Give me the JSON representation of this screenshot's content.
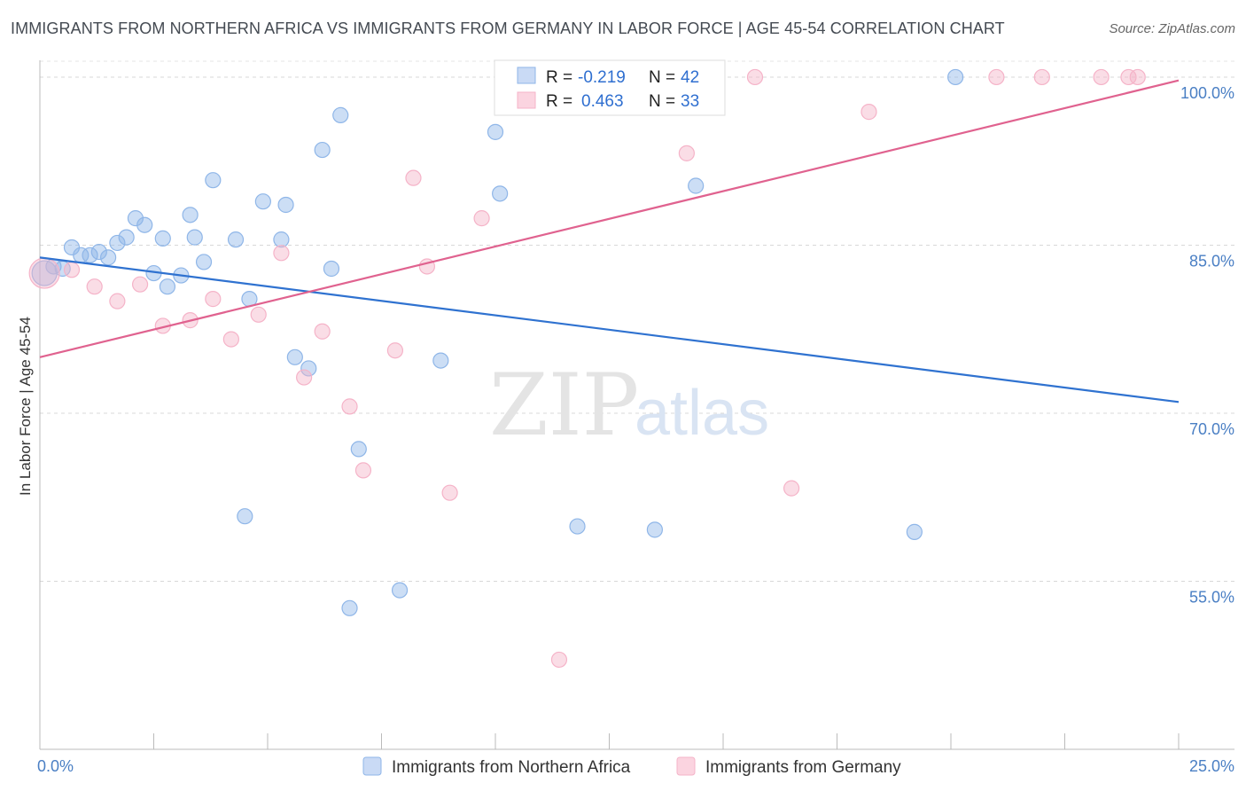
{
  "header": {
    "title": "IMMIGRANTS FROM NORTHERN AFRICA VS IMMIGRANTS FROM GERMANY IN LABOR FORCE | AGE 45-54 CORRELATION CHART",
    "source": "Source: ZipAtlas.com"
  },
  "watermark": {
    "zip": "ZIP",
    "atlas": "atlas"
  },
  "chart_data": {
    "type": "scatter",
    "title": "IMMIGRANTS FROM NORTHERN AFRICA VS IMMIGRANTS FROM GERMANY IN LABOR FORCE | AGE 45-54 CORRELATION CHART",
    "ylabel": "In Labor Force | Age 45-54",
    "xlabel": "",
    "xlim": [
      0,
      25
    ],
    "ylim": [
      40,
      101.5
    ],
    "x_tick_labels": [
      {
        "value": 0,
        "label": "0.0%"
      },
      {
        "value": 25,
        "label": "25.0%"
      }
    ],
    "x_minor_ticks": [
      2.5,
      5,
      7.5,
      10,
      12.5,
      15,
      17.5,
      20,
      22.5
    ],
    "y_ticks": [
      {
        "value": 55,
        "label": "55.0%"
      },
      {
        "value": 70,
        "label": "70.0%"
      },
      {
        "value": 85,
        "label": "85.0%"
      },
      {
        "value": 100,
        "label": "100.0%"
      }
    ],
    "grid": true,
    "legend_position": "bottom-center",
    "stats_box": {
      "rows": [
        {
          "r_label": "R = ",
          "r_value": "-0.219",
          "n_label": "N = ",
          "n_value": "42"
        },
        {
          "r_label": "R = ",
          "r_value": "0.463",
          "n_label": "N = ",
          "n_value": "33"
        }
      ]
    },
    "series": [
      {
        "name": "Immigrants from Northern Africa",
        "color": "#8fb6e8",
        "line_color": "#2f72d0",
        "trend": {
          "x0": 0,
          "y0": 83.9,
          "x1": 25,
          "y1": 71.0
        },
        "points": [
          [
            0.1,
            82.5
          ],
          [
            0.3,
            83.1
          ],
          [
            0.5,
            82.9
          ],
          [
            0.7,
            84.8
          ],
          [
            0.9,
            84.1
          ],
          [
            1.1,
            84.1
          ],
          [
            1.3,
            84.4
          ],
          [
            1.5,
            83.9
          ],
          [
            1.7,
            85.2
          ],
          [
            1.9,
            85.7
          ],
          [
            2.1,
            87.4
          ],
          [
            2.3,
            86.8
          ],
          [
            2.5,
            82.5
          ],
          [
            2.7,
            85.6
          ],
          [
            2.8,
            81.3
          ],
          [
            3.1,
            82.3
          ],
          [
            3.3,
            87.7
          ],
          [
            3.4,
            85.7
          ],
          [
            3.6,
            83.5
          ],
          [
            3.8,
            90.8
          ],
          [
            4.3,
            85.5
          ],
          [
            4.5,
            60.8
          ],
          [
            4.6,
            80.2
          ],
          [
            4.9,
            88.9
          ],
          [
            5.3,
            85.5
          ],
          [
            5.4,
            88.6
          ],
          [
            5.6,
            75.0
          ],
          [
            5.9,
            74.0
          ],
          [
            6.2,
            93.5
          ],
          [
            6.4,
            82.9
          ],
          [
            6.6,
            96.6
          ],
          [
            6.8,
            52.6
          ],
          [
            7.0,
            66.8
          ],
          [
            7.9,
            54.2
          ],
          [
            8.8,
            74.7
          ],
          [
            10.0,
            95.1
          ],
          [
            10.1,
            89.6
          ],
          [
            11.8,
            59.9
          ],
          [
            13.5,
            59.6
          ],
          [
            14.4,
            90.3
          ],
          [
            19.2,
            59.4
          ],
          [
            20.1,
            100.0
          ]
        ]
      },
      {
        "name": "Immigrants from Germany",
        "color": "#f5b3c8",
        "line_color": "#e0628f",
        "trend": {
          "x0": 0,
          "y0": 75.0,
          "x1": 25,
          "y1": 99.7
        },
        "points": [
          [
            0.1,
            82.5
          ],
          [
            0.7,
            82.8
          ],
          [
            1.2,
            81.3
          ],
          [
            1.7,
            80.0
          ],
          [
            2.2,
            81.5
          ],
          [
            2.7,
            77.8
          ],
          [
            3.3,
            78.3
          ],
          [
            3.8,
            80.2
          ],
          [
            4.2,
            76.6
          ],
          [
            4.8,
            78.8
          ],
          [
            5.3,
            84.3
          ],
          [
            5.8,
            73.2
          ],
          [
            6.2,
            77.3
          ],
          [
            6.8,
            70.6
          ],
          [
            7.1,
            64.9
          ],
          [
            7.8,
            75.6
          ],
          [
            8.2,
            91.0
          ],
          [
            8.5,
            83.1
          ],
          [
            9.0,
            62.9
          ],
          [
            9.7,
            87.4
          ],
          [
            10.6,
            100.0
          ],
          [
            11.4,
            48.0
          ],
          [
            12.0,
            100.0
          ],
          [
            12.7,
            100.0
          ],
          [
            14.2,
            93.2
          ],
          [
            15.7,
            100.0
          ],
          [
            16.5,
            63.3
          ],
          [
            18.2,
            96.9
          ],
          [
            21.0,
            100.0
          ],
          [
            22.0,
            100.0
          ],
          [
            23.3,
            100.0
          ],
          [
            23.9,
            100.0
          ],
          [
            24.1,
            100.0
          ]
        ]
      }
    ]
  }
}
